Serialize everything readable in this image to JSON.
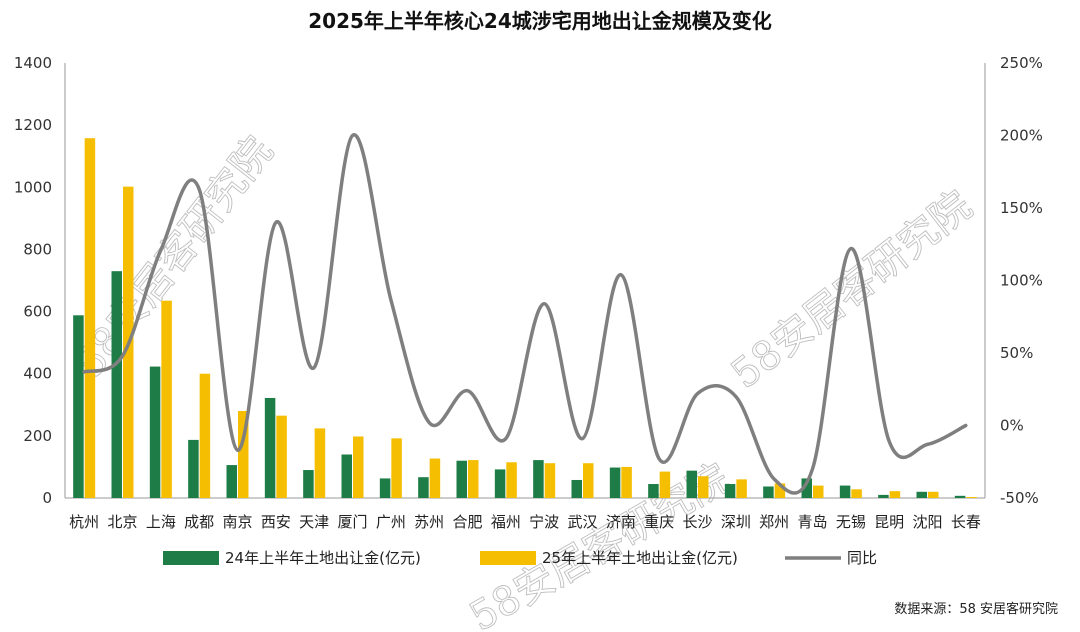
{
  "chart_data": {
    "type": "bar",
    "title": "2025年上半年核心24城涉宅用地出让金规模及变化",
    "categories": [
      "杭州",
      "北京",
      "上海",
      "成都",
      "南京",
      "西安",
      "天津",
      "厦门",
      "广州",
      "苏州",
      "合肥",
      "福州",
      "宁波",
      "武汉",
      "济南",
      "重庆",
      "长沙",
      "深圳",
      "郑州",
      "青岛",
      "无锡",
      "昆明",
      "沈阳",
      "长春"
    ],
    "series": [
      {
        "name": "24年上半年土地出让金(亿元)",
        "type": "bar",
        "axis": "left",
        "color": "#1e7d46",
        "values": [
          588,
          730,
          423,
          187,
          106,
          322,
          90,
          140,
          63,
          67,
          120,
          92,
          122,
          58,
          98,
          45,
          88,
          45,
          37,
          63,
          40,
          10,
          20,
          7
        ]
      },
      {
        "name": "25年上半年土地出让金(亿元)",
        "type": "bar",
        "axis": "left",
        "color": "#f5be00",
        "values": [
          1158,
          1002,
          635,
          400,
          280,
          265,
          224,
          198,
          192,
          127,
          122,
          115,
          112,
          112,
          100,
          85,
          70,
          60,
          47,
          40,
          28,
          22,
          20,
          3
        ]
      },
      {
        "name": "同比",
        "type": "line",
        "axis": "right",
        "unit": "%",
        "color": "#7f7f7f",
        "values": [
          37,
          48,
          121,
          163,
          -17,
          140,
          40,
          200,
          87,
          2,
          24,
          -9,
          84,
          -9,
          104,
          -23,
          22,
          20,
          -37,
          -30,
          122,
          -11,
          -13,
          0
        ]
      }
    ],
    "y_left": {
      "min": 0,
      "max": 1400,
      "step": 200,
      "ticks": [
        "0",
        "200",
        "400",
        "600",
        "800",
        "1000",
        "1200",
        "1400"
      ]
    },
    "y_right": {
      "min": -50,
      "max": 250,
      "step": 50,
      "ticks": [
        "-50%",
        "0%",
        "50%",
        "100%",
        "150%",
        "200%",
        "250%"
      ]
    },
    "grid": false,
    "legend_position": "bottom"
  },
  "source_note": "数据来源：58 安居客研究院",
  "watermark": "58安居客研究院"
}
